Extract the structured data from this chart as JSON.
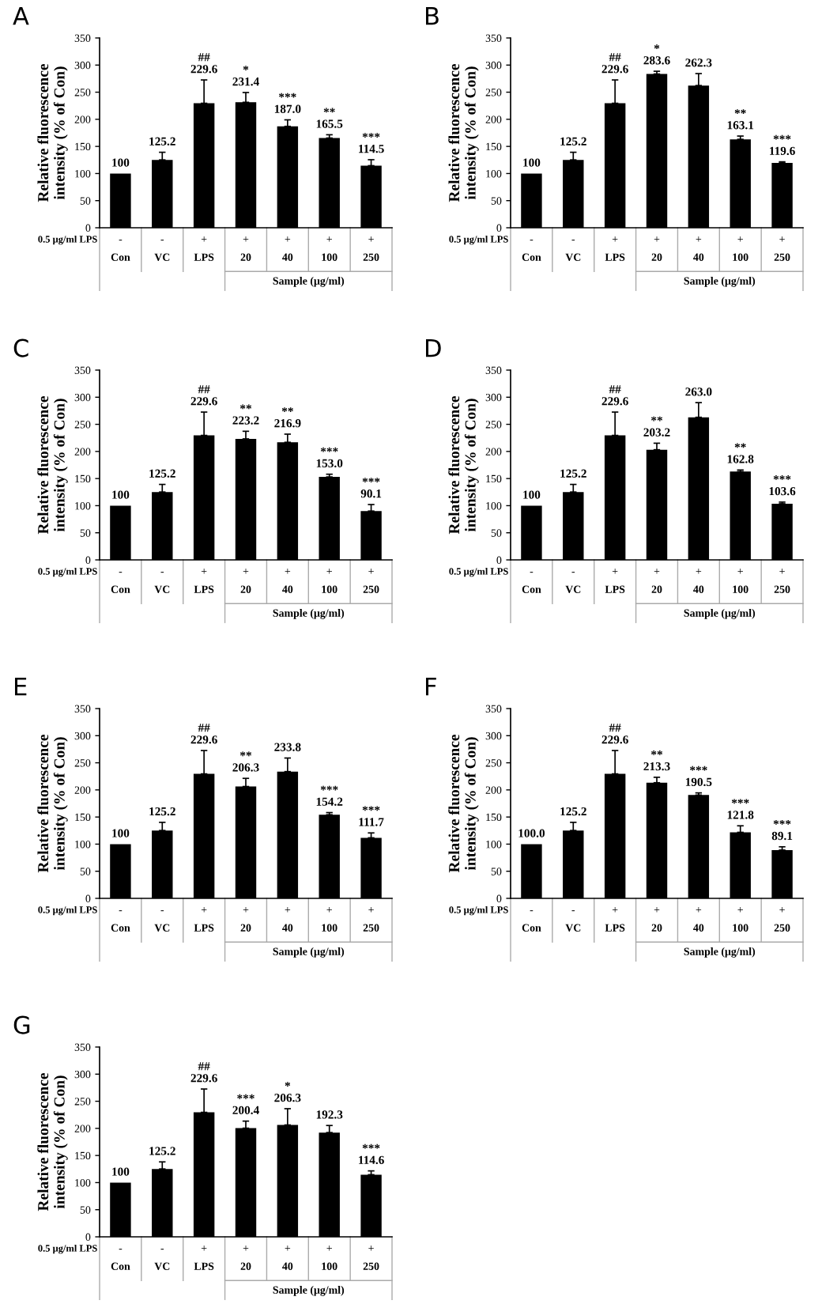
{
  "chart_data": [
    {
      "type": "bar",
      "title": "A",
      "ylabel": "Relative fluorescence\nintensity (% of Con)",
      "xlabel": "Sample (μg/ml)",
      "categories": [
        "Con",
        "VC",
        "LPS",
        "20",
        "40",
        "100",
        "250"
      ],
      "values": [
        100,
        125.2,
        229.6,
        231.4,
        187.0,
        165.5,
        114.5
      ],
      "errors": [
        null,
        14,
        43,
        18,
        12,
        6,
        11
      ],
      "value_labels": [
        "100",
        "125.2",
        "##\n229.6",
        "*\n231.4",
        "***\n187.0",
        "**\n165.5",
        "***\n114.5"
      ],
      "color": "#000000",
      "ylim": [
        0,
        350
      ],
      "yticks": [
        0,
        50,
        100,
        150,
        200,
        250,
        300,
        350
      ],
      "grid": false,
      "annotations": [
        "0.5 μg/ml LPS",
        "-",
        "-",
        "+",
        "+",
        "+",
        "+",
        "+"
      ]
    },
    {
      "type": "bar",
      "title": "B",
      "ylabel": "Relative fluorescence\nintensity (% of Con)",
      "xlabel": "Sample (μg/ml)",
      "categories": [
        "Con",
        "VC",
        "LPS",
        "20",
        "40",
        "100",
        "250"
      ],
      "values": [
        100,
        125.2,
        229.6,
        283.6,
        262.3,
        163.1,
        119.6
      ],
      "errors": [
        null,
        14,
        43,
        5,
        22,
        6,
        2
      ],
      "value_labels": [
        "100",
        "125.2",
        "##\n229.6",
        "*\n283.6",
        "262.3",
        "**\n163.1",
        "***\n119.6"
      ],
      "color": "#000000",
      "ylim": [
        0,
        350
      ],
      "yticks": [
        0,
        50,
        100,
        150,
        200,
        250,
        300,
        350
      ],
      "grid": false,
      "annotations": [
        "0.5 μg/ml LPS",
        "-",
        "-",
        "+",
        "+",
        "+",
        "+",
        "+"
      ]
    },
    {
      "type": "bar",
      "title": "C",
      "ylabel": "Relative fluorescence\nintensity (% of Con)",
      "xlabel": "Sample (μg/ml)",
      "categories": [
        "Con",
        "VC",
        "LPS",
        "20",
        "40",
        "100",
        "250"
      ],
      "values": [
        100,
        125.2,
        229.6,
        223.2,
        216.9,
        153.0,
        90.1
      ],
      "errors": [
        null,
        14,
        43,
        14,
        15,
        5,
        12
      ],
      "value_labels": [
        "100",
        "125.2",
        "##\n229.6",
        "**\n223.2",
        "**\n216.9",
        "***\n153.0",
        "***\n90.1"
      ],
      "color": "#000000",
      "ylim": [
        0,
        350
      ],
      "yticks": [
        0,
        50,
        100,
        150,
        200,
        250,
        300,
        350
      ],
      "grid": false,
      "annotations": [
        "0.5 μg/ml LPS",
        "-",
        "-",
        "+",
        "+",
        "+",
        "+",
        "+"
      ]
    },
    {
      "type": "bar",
      "title": "D",
      "ylabel": "Relative fluorescence\nintensity (% of Con)",
      "xlabel": "Sample (μg/ml)",
      "categories": [
        "Con",
        "VC",
        "LPS",
        "20",
        "40",
        "100",
        "250"
      ],
      "values": [
        100,
        125.2,
        229.6,
        203.2,
        263.0,
        162.8,
        103.6
      ],
      "errors": [
        null,
        14,
        43,
        12,
        27,
        3,
        3
      ],
      "value_labels": [
        "100",
        "125.2",
        "##\n229.6",
        "**\n203.2",
        "263.0",
        "**\n162.8",
        "***\n103.6"
      ],
      "color": "#000000",
      "ylim": [
        0,
        350
      ],
      "yticks": [
        0,
        50,
        100,
        150,
        200,
        250,
        300,
        350
      ],
      "grid": false,
      "annotations": [
        "0.5 μg/ml LPS",
        "-",
        "-",
        "+",
        "+",
        "+",
        "+",
        "+"
      ]
    },
    {
      "type": "bar",
      "title": "E",
      "ylabel": "Relative fluorescence\nintensity (% of Con)",
      "xlabel": "Sample (μg/ml)",
      "categories": [
        "Con",
        "VC",
        "LPS",
        "20",
        "40",
        "100",
        "250"
      ],
      "values": [
        100,
        125.2,
        229.6,
        206.3,
        233.8,
        154.2,
        111.7
      ],
      "errors": [
        null,
        15,
        43,
        15,
        25,
        4,
        9
      ],
      "value_labels": [
        "100",
        "125.2",
        "##\n229.6",
        "**\n206.3",
        "233.8",
        "***\n154.2",
        "***\n111.7"
      ],
      "color": "#000000",
      "ylim": [
        0,
        350
      ],
      "yticks": [
        0,
        50,
        100,
        150,
        200,
        250,
        300,
        350
      ],
      "grid": false,
      "annotations": [
        "0.5 μg/ml LPS",
        "-",
        "-",
        "+",
        "+",
        "+",
        "+",
        "+"
      ]
    },
    {
      "type": "bar",
      "title": "F",
      "ylabel": "Relative fluorescence\nintensity (% of Con)",
      "xlabel": "Sample (μg/ml)",
      "categories": [
        "Con",
        "VC",
        "LPS",
        "20",
        "40",
        "100",
        "250"
      ],
      "values": [
        100.0,
        125.2,
        229.6,
        213.3,
        190.5,
        121.8,
        89.1
      ],
      "errors": [
        null,
        15,
        43,
        10,
        4,
        12,
        6
      ],
      "value_labels": [
        "100.0",
        "125.2",
        "##\n229.6",
        "**\n213.3",
        "***\n190.5",
        "***\n121.8",
        "***\n89.1"
      ],
      "color": "#000000",
      "ylim": [
        0,
        350
      ],
      "yticks": [
        0,
        50,
        100,
        150,
        200,
        250,
        300,
        350
      ],
      "grid": false,
      "annotations": [
        "0.5 μg/ml LPS",
        "-",
        "-",
        "+",
        "+",
        "+",
        "+",
        "+"
      ]
    },
    {
      "type": "bar",
      "title": "G",
      "ylabel": "Relative fluorescence\nintensity (% of Con)",
      "xlabel": "Sample (μg/ml)",
      "categories": [
        "Con",
        "VC",
        "LPS",
        "20",
        "40",
        "100",
        "250"
      ],
      "values": [
        100,
        125.2,
        229.6,
        200.4,
        206.3,
        192.3,
        114.6
      ],
      "errors": [
        null,
        13,
        43,
        13,
        30,
        13,
        7
      ],
      "value_labels": [
        "100",
        "125.2",
        "##\n229.6",
        "***\n200.4",
        "*\n206.3",
        "192.3",
        "***\n114.6"
      ],
      "color": "#000000",
      "ylim": [
        0,
        350
      ],
      "yticks": [
        0,
        50,
        100,
        150,
        200,
        250,
        300,
        350
      ],
      "grid": false,
      "annotations": [
        "0.5 μg/ml LPS",
        "-",
        "-",
        "+",
        "+",
        "+",
        "+",
        "+"
      ]
    }
  ]
}
